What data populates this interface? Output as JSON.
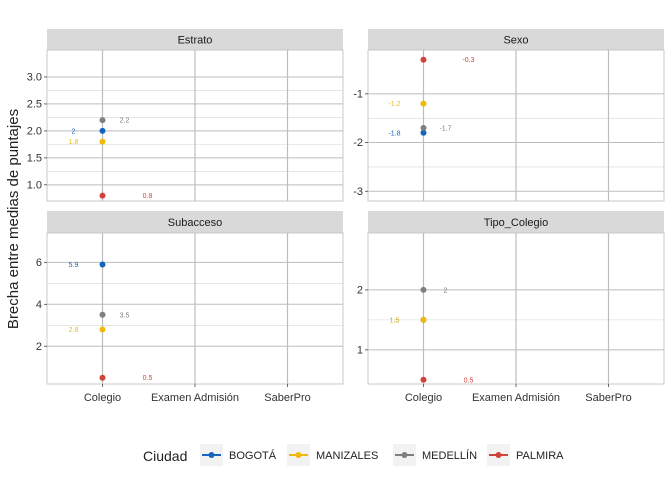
{
  "colors": {
    "BOGOTÁ": "#1565C0",
    "MANIZALES": "#F2B90C",
    "MEDELLÍN": "#7F7F7F",
    "PALMIRA": "#D0433A",
    "strip_bg": "#D9D9D9",
    "grid": "#BDBDBD",
    "panel_border": "#C8C8C8"
  },
  "ylabel": "Brecha entre medias de puntajes",
  "legend": {
    "title": "Ciudad",
    "entries": [
      "BOGOTÁ",
      "MANIZALES",
      "MEDELLÍN",
      "PALMIRA"
    ]
  },
  "chart_data": [
    {
      "type": "scatter",
      "title": "Estrato",
      "categories": [
        "Colegio",
        "Examen Admisión",
        "SaberPro"
      ],
      "ylim": [
        0.7,
        3.5
      ],
      "yticks": [
        "1.0",
        "1.5",
        "2.0",
        "2.5",
        "3.0"
      ],
      "show_xticks": false,
      "series": [
        {
          "name": "BOGOTÁ",
          "x": "Colegio",
          "y": 2.0,
          "label": "2",
          "label_side": "left"
        },
        {
          "name": "MANIZALES",
          "x": "Colegio",
          "y": 1.8,
          "label": "1.8",
          "label_side": "left"
        },
        {
          "name": "MEDELLÍN",
          "x": "Colegio",
          "y": 2.2,
          "label": "2.2",
          "label_side": "right"
        },
        {
          "name": "PALMIRA",
          "x": "Colegio",
          "y": 0.8,
          "label": "0.8",
          "label_side": "far-right"
        }
      ]
    },
    {
      "type": "scatter",
      "title": "Sexo",
      "categories": [
        "Colegio",
        "Examen Admisión",
        "SaberPro"
      ],
      "ylim": [
        -3.2,
        -0.1
      ],
      "yticks": [
        "-3",
        "-2",
        "-1"
      ],
      "show_xticks": false,
      "series": [
        {
          "name": "BOGOTÁ",
          "x": "Colegio",
          "y": -1.8,
          "label": "-1.8",
          "label_side": "left"
        },
        {
          "name": "MANIZALES",
          "x": "Colegio",
          "y": -1.2,
          "label": "-1.2",
          "label_side": "left"
        },
        {
          "name": "MEDELLÍN",
          "x": "Colegio",
          "y": -1.7,
          "label": "-1.7",
          "label_side": "right"
        },
        {
          "name": "PALMIRA",
          "x": "Colegio",
          "y": -0.3,
          "label": "-0.3",
          "label_side": "far-right"
        }
      ]
    },
    {
      "type": "scatter",
      "title": "Subacceso",
      "categories": [
        "Colegio",
        "Examen Admisión",
        "SaberPro"
      ],
      "ylim": [
        0.2,
        7.4
      ],
      "yticks": [
        "2",
        "4",
        "6"
      ],
      "show_xticks": true,
      "series": [
        {
          "name": "BOGOTÁ",
          "x": "Colegio",
          "y": 5.9,
          "label": "5.9",
          "label_side": "left"
        },
        {
          "name": "MANIZALES",
          "x": "Colegio",
          "y": 2.8,
          "label": "2.8",
          "label_side": "left"
        },
        {
          "name": "MEDELLÍN",
          "x": "Colegio",
          "y": 3.5,
          "label": "3.5",
          "label_side": "right"
        },
        {
          "name": "PALMIRA",
          "x": "Colegio",
          "y": 0.5,
          "label": "0.5",
          "label_side": "far-right"
        }
      ]
    },
    {
      "type": "scatter",
      "title": "Tipo_Colegio",
      "categories": [
        "Colegio",
        "Examen Admisión",
        "SaberPro"
      ],
      "ylim": [
        0.43,
        2.95
      ],
      "yticks": [
        "1",
        "2"
      ],
      "show_xticks": true,
      "series": [
        {
          "name": "BOGOTÁ",
          "x": "Colegio",
          "y": 1.5,
          "label": "1.5",
          "label_side": "left"
        },
        {
          "name": "MANIZALES",
          "x": "Colegio",
          "y": 1.5,
          "label": "1.5",
          "label_side": "left"
        },
        {
          "name": "MEDELLÍN",
          "x": "Colegio",
          "y": 2.0,
          "label": "2",
          "label_side": "right"
        },
        {
          "name": "PALMIRA",
          "x": "Colegio",
          "y": 0.5,
          "label": "0.5",
          "label_side": "far-right"
        }
      ]
    }
  ]
}
